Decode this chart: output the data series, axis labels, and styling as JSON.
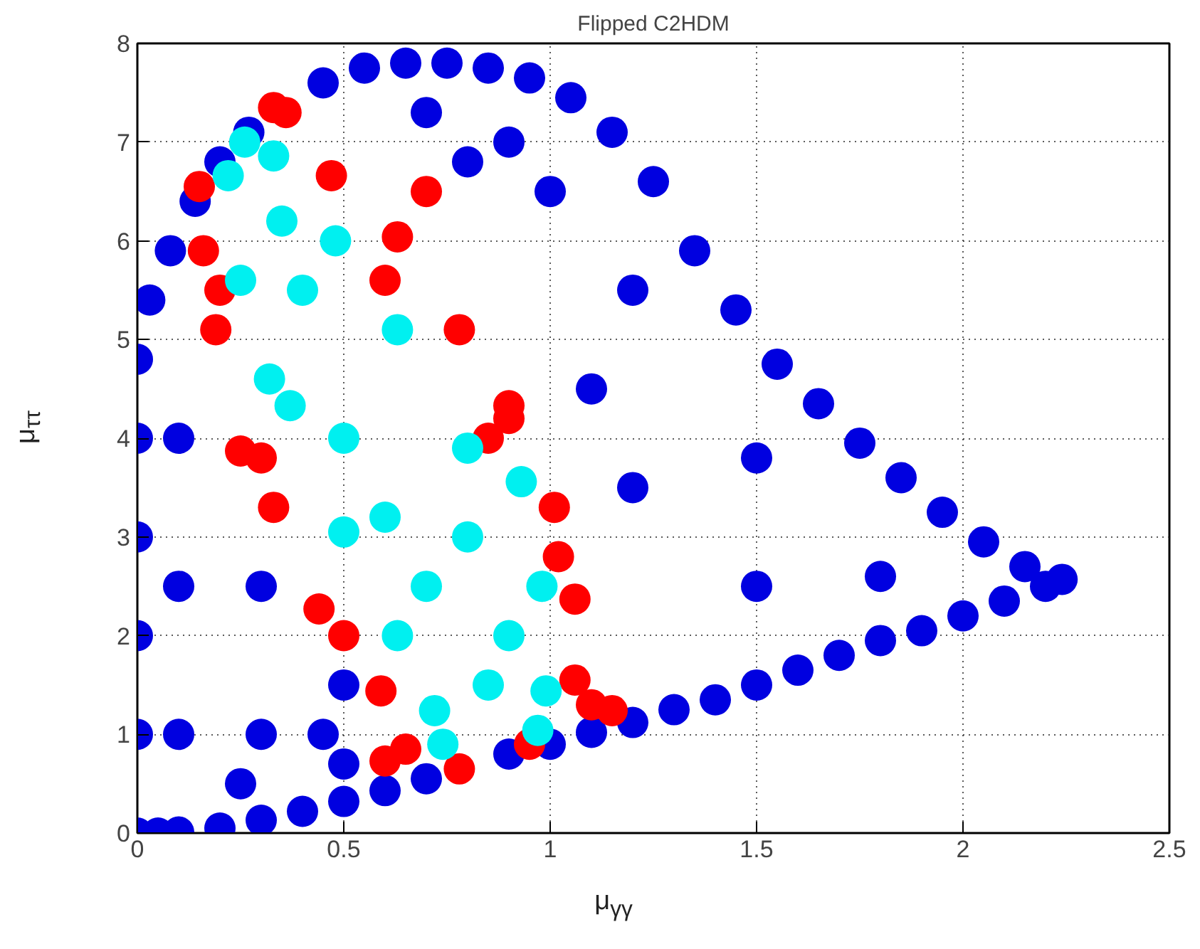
{
  "chart_data": {
    "type": "scatter",
    "title": "Flipped C2HDM",
    "xlabel": "μ$_{γγ}$",
    "ylabel": "μ$_{ττ}$",
    "xlim": [
      0,
      2.5
    ],
    "ylim": [
      0,
      8
    ],
    "xticks": [
      0,
      0.5,
      1,
      1.5,
      2,
      2.5
    ],
    "yticks": [
      0,
      1,
      2,
      3,
      4,
      5,
      6,
      7,
      8
    ],
    "grid": true,
    "marker": "circle",
    "series": [
      {
        "color": "#0000e0",
        "x": [
          0,
          0,
          0,
          0,
          0,
          0,
          0.03,
          0.08,
          0.14,
          0.2,
          0.27,
          0.35,
          0.45,
          0.55,
          0.65,
          0.75,
          0.85,
          0.95,
          1.05,
          1.15,
          1.25,
          1.35,
          1.45,
          1.55,
          1.65,
          1.75,
          1.85,
          1.95,
          2.05,
          2.15,
          2.2,
          2.24,
          2.1,
          2.0,
          1.9,
          1.8,
          1.7,
          1.6,
          1.5,
          1.4,
          1.3,
          1.2,
          1.1,
          1.0,
          0.9,
          0.8,
          0.7,
          0.6,
          0.5,
          0.4,
          0.3,
          0.2,
          0.1,
          0.05,
          0.1,
          0.1,
          0.1,
          0.3,
          0.3,
          0.5,
          0.5,
          0.8,
          1.0,
          1.2,
          1.2,
          1.5,
          1.5,
          1.8,
          0.7,
          0.9,
          1.1,
          0.25,
          0.45
        ],
        "values": [
          0,
          1,
          2,
          3,
          4,
          4.8,
          5.4,
          5.9,
          6.4,
          6.8,
          7.1,
          null,
          7.6,
          7.75,
          7.8,
          7.8,
          7.75,
          7.65,
          7.45,
          7.1,
          6.6,
          5.9,
          5.3,
          4.75,
          4.35,
          3.95,
          3.6,
          3.25,
          2.95,
          2.7,
          2.5,
          2.57,
          2.35,
          2.2,
          2.05,
          1.95,
          1.8,
          1.65,
          1.5,
          1.35,
          1.25,
          1.12,
          1.02,
          0.9,
          0.8,
          null,
          0.55,
          0.43,
          0.32,
          0.22,
          0.13,
          0.05,
          0.01,
          0,
          1,
          2.5,
          4,
          1,
          2.5,
          0.7,
          1.5,
          6.8,
          6.5,
          5.5,
          3.5,
          2.5,
          3.8,
          2.6,
          7.3,
          7.0,
          4.5,
          0.5,
          1.0
        ]
      },
      {
        "color": "#ff0000",
        "x": [
          0.33,
          0.15,
          0.16,
          0.19,
          0.25,
          0.33,
          0.44,
          0.59,
          0.6,
          0.78,
          0.95,
          1.15,
          1.06,
          1.06,
          1.01,
          0.9,
          0.78,
          0.63,
          0.47,
          0.36,
          0.2,
          0.3,
          0.5,
          0.65,
          0.9,
          0.6,
          0.85,
          1.02,
          1.1,
          0.7
        ],
        "values": [
          7.35,
          6.55,
          5.9,
          5.1,
          3.87,
          3.3,
          2.27,
          1.44,
          0.73,
          0.65,
          0.9,
          1.24,
          1.55,
          2.37,
          3.3,
          4.33,
          5.1,
          6.04,
          6.66,
          7.3,
          5.5,
          3.8,
          2.0,
          0.85,
          4.2,
          5.6,
          4.0,
          2.8,
          1.3,
          6.5
        ]
      },
      {
        "color": "#00f0f0",
        "x": [
          0.26,
          0.22,
          0.25,
          0.32,
          0.37,
          0.5,
          0.63,
          0.72,
          0.74,
          0.97,
          0.99,
          0.98,
          0.93,
          0.8,
          0.63,
          0.48,
          0.33,
          0.5,
          0.7,
          0.4,
          0.85,
          0.6,
          0.35,
          0.8,
          0.9
        ],
        "values": [
          7.0,
          6.66,
          5.6,
          4.6,
          4.33,
          3.05,
          2.0,
          1.24,
          0.9,
          1.04,
          1.44,
          2.5,
          3.56,
          3.9,
          5.1,
          6.0,
          6.86,
          4.0,
          2.5,
          5.5,
          1.5,
          3.2,
          6.2,
          3.0,
          2.0
        ]
      }
    ]
  }
}
